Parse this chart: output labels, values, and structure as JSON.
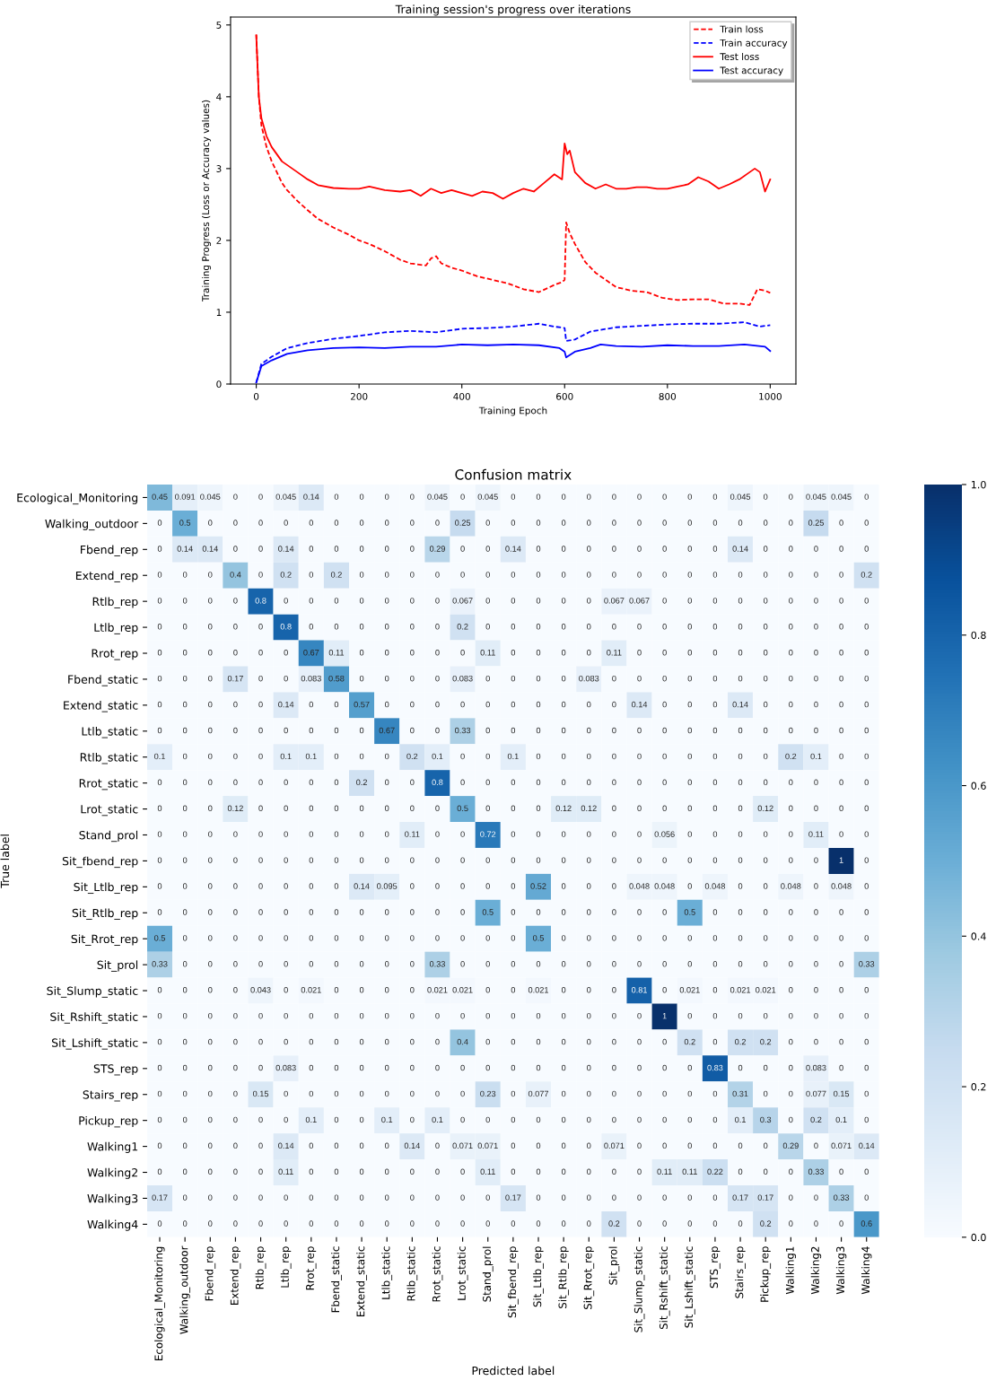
{
  "chart_data": [
    {
      "type": "line",
      "title": "Training session's progress over iterations",
      "xlabel": "Training Epoch",
      "ylabel": "Training Progress (Loss or Accuracy values)",
      "xlim": [
        -50,
        1050
      ],
      "ylim": [
        0,
        5.11
      ],
      "xticks": [
        0,
        200,
        400,
        600,
        800,
        1000
      ],
      "yticks": [
        0,
        1,
        2,
        3,
        4,
        5
      ],
      "legend": "top right",
      "grid": false,
      "series": [
        {
          "name": "Train loss",
          "color": "#ff0000",
          "line_style": "dashed",
          "x": [
            0,
            5,
            10,
            20,
            30,
            40,
            50,
            60,
            80,
            100,
            120,
            150,
            180,
            200,
            220,
            250,
            280,
            300,
            330,
            340,
            350,
            360,
            380,
            400,
            430,
            460,
            490,
            520,
            550,
            580,
            595,
            600,
            603,
            610,
            620,
            640,
            660,
            680,
            700,
            730,
            760,
            790,
            820,
            850,
            880,
            910,
            940,
            960,
            975,
            990,
            1000
          ],
          "values": [
            4.87,
            4.0,
            3.6,
            3.3,
            3.1,
            2.95,
            2.8,
            2.7,
            2.55,
            2.42,
            2.3,
            2.18,
            2.08,
            2.0,
            1.95,
            1.85,
            1.73,
            1.68,
            1.65,
            1.75,
            1.78,
            1.68,
            1.62,
            1.58,
            1.5,
            1.45,
            1.4,
            1.32,
            1.28,
            1.38,
            1.42,
            1.45,
            2.25,
            2.1,
            1.95,
            1.7,
            1.55,
            1.45,
            1.35,
            1.3,
            1.28,
            1.2,
            1.17,
            1.18,
            1.18,
            1.12,
            1.12,
            1.1,
            1.32,
            1.3,
            1.27
          ]
        },
        {
          "name": "Train accuracy",
          "color": "#0000ff",
          "line_style": "dashed",
          "x": [
            0,
            10,
            30,
            60,
            100,
            150,
            200,
            250,
            300,
            350,
            400,
            450,
            500,
            550,
            580,
            600,
            603,
            620,
            650,
            700,
            750,
            800,
            850,
            900,
            950,
            980,
            1000
          ],
          "values": [
            0.02,
            0.28,
            0.38,
            0.5,
            0.57,
            0.63,
            0.67,
            0.72,
            0.74,
            0.72,
            0.77,
            0.78,
            0.8,
            0.84,
            0.8,
            0.78,
            0.6,
            0.62,
            0.73,
            0.79,
            0.81,
            0.83,
            0.84,
            0.84,
            0.86,
            0.8,
            0.82
          ]
        },
        {
          "name": "Test loss",
          "color": "#ff0000",
          "line_style": "solid",
          "x": [
            0,
            5,
            10,
            20,
            30,
            40,
            50,
            60,
            80,
            100,
            120,
            150,
            180,
            200,
            220,
            250,
            280,
            300,
            320,
            340,
            360,
            380,
            400,
            420,
            440,
            460,
            480,
            500,
            520,
            540,
            560,
            580,
            595,
            600,
            605,
            610,
            620,
            640,
            660,
            680,
            700,
            720,
            740,
            760,
            780,
            800,
            820,
            840,
            860,
            880,
            900,
            920,
            940,
            960,
            970,
            980,
            990,
            1000
          ],
          "values": [
            4.85,
            4.0,
            3.7,
            3.45,
            3.3,
            3.2,
            3.1,
            3.05,
            2.95,
            2.85,
            2.77,
            2.73,
            2.72,
            2.72,
            2.75,
            2.7,
            2.68,
            2.7,
            2.62,
            2.72,
            2.66,
            2.7,
            2.66,
            2.62,
            2.68,
            2.66,
            2.58,
            2.66,
            2.72,
            2.68,
            2.8,
            2.92,
            2.85,
            3.35,
            3.2,
            3.25,
            2.95,
            2.8,
            2.72,
            2.78,
            2.72,
            2.72,
            2.74,
            2.74,
            2.72,
            2.72,
            2.75,
            2.78,
            2.88,
            2.82,
            2.72,
            2.78,
            2.85,
            2.95,
            3.0,
            2.95,
            2.68,
            2.85
          ]
        },
        {
          "name": "Test accuracy",
          "color": "#0000ff",
          "line_style": "solid",
          "x": [
            0,
            10,
            30,
            60,
            100,
            150,
            200,
            250,
            300,
            350,
            400,
            450,
            500,
            550,
            590,
            600,
            603,
            620,
            650,
            670,
            700,
            750,
            800,
            850,
            900,
            950,
            990,
            1000
          ],
          "values": [
            0.02,
            0.25,
            0.33,
            0.42,
            0.47,
            0.5,
            0.51,
            0.5,
            0.52,
            0.52,
            0.55,
            0.54,
            0.55,
            0.54,
            0.5,
            0.45,
            0.37,
            0.45,
            0.5,
            0.55,
            0.53,
            0.52,
            0.54,
            0.53,
            0.53,
            0.55,
            0.52,
            0.46
          ]
        }
      ]
    },
    {
      "type": "heatmap",
      "title": "Confusion matrix",
      "xlabel": "Predicted label",
      "ylabel": "True label",
      "data_labels": true,
      "categories": [
        "Ecological_Monitoring",
        "Walking_outdoor",
        "Fbend_rep",
        "Extend_rep",
        "Rtlb_rep",
        "Ltlb_rep",
        "Rrot_rep",
        "Fbend_static",
        "Extend_static",
        "Ltlb_static",
        "Rtlb_static",
        "Rrot_static",
        "Lrot_static",
        "Stand_prol",
        "Sit_fbend_rep",
        "Sit_Ltlb_rep",
        "Sit_Rtlb_rep",
        "Sit_Rrot_rep",
        "Sit_prol",
        "Sit_Slump_static",
        "Sit_Rshift_static",
        "Sit_Lshift_static",
        "STS_rep",
        "Stairs_rep",
        "Pickup_rep",
        "Walking1",
        "Walking2",
        "Walking3",
        "Walking4"
      ],
      "y_categories": [
        "Ecological_Monitoring",
        "Walking_outdoor",
        "Fbend_rep",
        "Extend_rep",
        "Rtlb_rep",
        "Ltlb_rep",
        "Rrot_rep",
        "Fbend_static",
        "Extend_static",
        "Ltlb_static",
        "Rtlb_static",
        "Rrot_static",
        "Lrot_static",
        "Stand_prol",
        "Sit_fbend_rep",
        "Sit_Ltlb_rep",
        "Sit_Rtlb_rep",
        "Sit_Rrot_rep",
        "Sit_prol",
        "Sit_Slump_static",
        "Sit_Rshift_static",
        "Sit_Lshift_static",
        "STS_rep",
        "Stairs_rep",
        "Pickup_rep",
        "Walking1",
        "Walking2",
        "Walking3",
        "Walking4"
      ],
      "clim": [
        0,
        1
      ],
      "cticks": [
        {
          "value": 0,
          "label": "0.0"
        },
        {
          "value": 0.2,
          "label": "0.2"
        },
        {
          "value": 0.4,
          "label": "0.4"
        },
        {
          "value": 0.6,
          "label": "0.6"
        },
        {
          "value": 0.8,
          "label": "0.8"
        },
        {
          "value": 1,
          "label": "1.0"
        }
      ],
      "cells": [
        [
          0.45,
          0.091,
          0.045,
          0,
          0,
          0.045,
          0.14,
          0,
          0,
          0,
          0,
          0.045,
          0,
          0.045,
          0,
          0,
          0,
          0,
          0,
          0,
          0,
          0,
          0,
          0.045,
          0,
          0,
          0.045,
          0.045,
          0
        ],
        [
          0,
          0.5,
          0,
          0,
          0,
          0,
          0,
          0,
          0,
          0,
          0,
          0,
          0.25,
          0,
          0,
          0,
          0,
          0,
          0,
          0,
          0,
          0,
          0,
          0,
          0,
          0,
          0.25,
          0,
          0
        ],
        [
          0,
          0.14,
          0.14,
          0,
          0,
          0.14,
          0,
          0,
          0,
          0,
          0,
          0.29,
          0,
          0,
          0.14,
          0,
          0,
          0,
          0,
          0,
          0,
          0,
          0,
          0.14,
          0,
          0,
          0,
          0,
          0
        ],
        [
          0,
          0,
          0,
          0.4,
          0,
          0.2,
          0,
          0.2,
          0,
          0,
          0,
          0,
          0,
          0,
          0,
          0,
          0,
          0,
          0,
          0,
          0,
          0,
          0,
          0,
          0,
          0,
          0,
          0,
          0.2
        ],
        [
          0,
          0,
          0,
          0,
          0.8,
          0,
          0,
          0,
          0,
          0,
          0,
          0,
          0.067,
          0,
          0,
          0,
          0,
          0,
          0.067,
          0.067,
          0,
          0,
          0,
          0,
          0,
          0,
          0,
          0,
          0
        ],
        [
          0,
          0,
          0,
          0,
          0,
          0.8,
          0,
          0,
          0,
          0,
          0,
          0,
          0.2,
          0,
          0,
          0,
          0,
          0,
          0,
          0,
          0,
          0,
          0,
          0,
          0,
          0,
          0,
          0,
          0
        ],
        [
          0,
          0,
          0,
          0,
          0,
          0,
          0.67,
          0.11,
          0,
          0,
          0,
          0,
          0,
          0.11,
          0,
          0,
          0,
          0,
          0.11,
          0,
          0,
          0,
          0,
          0,
          0,
          0,
          0,
          0,
          0
        ],
        [
          0,
          0,
          0,
          0.17,
          0,
          0,
          0.083,
          0.58,
          0,
          0,
          0,
          0,
          0.083,
          0,
          0,
          0,
          0,
          0.083,
          0,
          0,
          0,
          0,
          0,
          0,
          0,
          0,
          0,
          0,
          0
        ],
        [
          0,
          0,
          0,
          0,
          0,
          0.14,
          0,
          0,
          0.57,
          0,
          0,
          0,
          0,
          0,
          0,
          0,
          0,
          0,
          0,
          0.14,
          0,
          0,
          0,
          0.14,
          0,
          0,
          0,
          0,
          0
        ],
        [
          0,
          0,
          0,
          0,
          0,
          0,
          0,
          0,
          0,
          0.67,
          0,
          0,
          0.33,
          0,
          0,
          0,
          0,
          0,
          0,
          0,
          0,
          0,
          0,
          0,
          0,
          0,
          0,
          0,
          0
        ],
        [
          0.1,
          0,
          0,
          0,
          0,
          0.1,
          0.1,
          0,
          0,
          0,
          0.2,
          0.1,
          0,
          0,
          0.1,
          0,
          0,
          0,
          0,
          0,
          0,
          0,
          0,
          0,
          0,
          0.2,
          0.1,
          0,
          0
        ],
        [
          0,
          0,
          0,
          0,
          0,
          0,
          0,
          0,
          0.2,
          0,
          0,
          0.8,
          0,
          0,
          0,
          0,
          0,
          0,
          0,
          0,
          0,
          0,
          0,
          0,
          0,
          0,
          0,
          0,
          0
        ],
        [
          0,
          0,
          0,
          0.12,
          0,
          0,
          0,
          0,
          0,
          0,
          0,
          0,
          0.5,
          0,
          0,
          0,
          0.12,
          0.12,
          0,
          0,
          0,
          0,
          0,
          0,
          0.12,
          0,
          0,
          0,
          0
        ],
        [
          0,
          0,
          0,
          0,
          0,
          0,
          0,
          0,
          0,
          0,
          0.11,
          0,
          0,
          0.72,
          0,
          0,
          0,
          0,
          0,
          0,
          0.056,
          0,
          0,
          0,
          0,
          0,
          0.11,
          0,
          0
        ],
        [
          0,
          0,
          0,
          0,
          0,
          0,
          0,
          0,
          0,
          0,
          0,
          0,
          0,
          0,
          0,
          0,
          0,
          0,
          0,
          0,
          0,
          0,
          0,
          0,
          0,
          0,
          0,
          1,
          0
        ],
        [
          0,
          0,
          0,
          0,
          0,
          0,
          0,
          0,
          0.14,
          0.095,
          0,
          0,
          0,
          0,
          0,
          0.52,
          0,
          0,
          0,
          0.048,
          0.048,
          0,
          0.048,
          0,
          0,
          0.048,
          0,
          0.048,
          0
        ],
        [
          0,
          0,
          0,
          0,
          0,
          0,
          0,
          0,
          0,
          0,
          0,
          0,
          0,
          0.5,
          0,
          0,
          0,
          0,
          0,
          0,
          0,
          0.5,
          0,
          0,
          0,
          0,
          0,
          0,
          0
        ],
        [
          0.5,
          0,
          0,
          0,
          0,
          0,
          0,
          0,
          0,
          0,
          0,
          0,
          0,
          0,
          0,
          0.5,
          0,
          0,
          0,
          0,
          0,
          0,
          0,
          0,
          0,
          0,
          0,
          0,
          0
        ],
        [
          0.33,
          0,
          0,
          0,
          0,
          0,
          0,
          0,
          0,
          0,
          0,
          0.33,
          0,
          0,
          0,
          0,
          0,
          0,
          0,
          0,
          0,
          0,
          0,
          0,
          0,
          0,
          0,
          0,
          0.33
        ],
        [
          0,
          0,
          0,
          0,
          0.043,
          0,
          0.021,
          0,
          0,
          0,
          0,
          0.021,
          0.021,
          0,
          0,
          0.021,
          0,
          0,
          0,
          0.81,
          0,
          0.021,
          0,
          0.021,
          0.021,
          0,
          0,
          0,
          0
        ],
        [
          0,
          0,
          0,
          0,
          0,
          0,
          0,
          0,
          0,
          0,
          0,
          0,
          0,
          0,
          0,
          0,
          0,
          0,
          0,
          0,
          1,
          0,
          0,
          0,
          0,
          0,
          0,
          0,
          0
        ],
        [
          0,
          0,
          0,
          0,
          0,
          0,
          0,
          0,
          0,
          0,
          0,
          0,
          0.4,
          0,
          0,
          0,
          0,
          0,
          0,
          0,
          0,
          0.2,
          0,
          0.2,
          0.2,
          0,
          0,
          0,
          0
        ],
        [
          0,
          0,
          0,
          0,
          0,
          0.083,
          0,
          0,
          0,
          0,
          0,
          0,
          0,
          0,
          0,
          0,
          0,
          0,
          0,
          0,
          0,
          0,
          0.83,
          0,
          0,
          0,
          0.083,
          0,
          0
        ],
        [
          0,
          0,
          0,
          0,
          0.15,
          0,
          0,
          0,
          0,
          0,
          0,
          0,
          0,
          0.23,
          0,
          0.077,
          0,
          0,
          0,
          0,
          0,
          0,
          0,
          0.31,
          0,
          0,
          0.077,
          0.15,
          0
        ],
        [
          0,
          0,
          0,
          0,
          0,
          0,
          0.1,
          0,
          0,
          0.1,
          0,
          0.1,
          0,
          0,
          0,
          0,
          0,
          0,
          0,
          0,
          0,
          0,
          0,
          0.1,
          0.3,
          0,
          0.2,
          0.1,
          0
        ],
        [
          0,
          0,
          0,
          0,
          0,
          0.14,
          0,
          0,
          0,
          0,
          0.14,
          0,
          0.071,
          0.071,
          0,
          0,
          0,
          0,
          0.071,
          0,
          0,
          0,
          0,
          0,
          0,
          0.29,
          0,
          0.071,
          0.14
        ],
        [
          0,
          0,
          0,
          0,
          0,
          0.11,
          0,
          0,
          0,
          0,
          0,
          0,
          0,
          0.11,
          0,
          0,
          0,
          0,
          0,
          0,
          0.11,
          0.11,
          0.22,
          0,
          0,
          0,
          0.33,
          0,
          0
        ],
        [
          0.17,
          0,
          0,
          0,
          0,
          0,
          0,
          0,
          0,
          0,
          0,
          0,
          0,
          0,
          0.17,
          0,
          0,
          0,
          0,
          0,
          0,
          0,
          0,
          0.17,
          0.17,
          0,
          0,
          0.33,
          0
        ],
        [
          0,
          0,
          0,
          0,
          0,
          0,
          0,
          0,
          0,
          0,
          0,
          0,
          0,
          0,
          0,
          0,
          0,
          0,
          0.2,
          0,
          0,
          0,
          0,
          0,
          0.2,
          0,
          0,
          0,
          0.6
        ]
      ]
    }
  ]
}
